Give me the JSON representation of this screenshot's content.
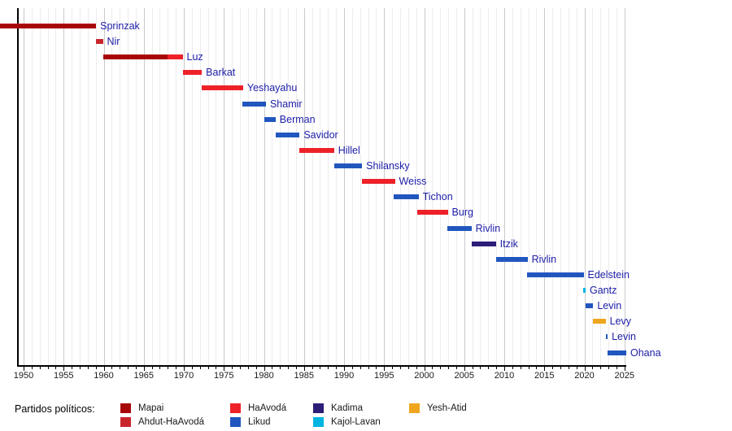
{
  "chart_data": {
    "type": "bar",
    "subtype": "gantt-timeline",
    "title": "",
    "legend_title": "Partidos políticos:",
    "legend_position": "bottom",
    "grid": "vertical-year-lines",
    "x_axis": {
      "min_year": 1950,
      "max_year": 2025,
      "major_tick_interval": 5,
      "minor_tick_interval": 1,
      "tick_labels": [
        "1950",
        "1955",
        "1960",
        "1965",
        "1970",
        "1975",
        "1980",
        "1985",
        "1990",
        "1995",
        "2000",
        "2005",
        "2010",
        "2015",
        "2020",
        "2025"
      ]
    },
    "parties": [
      {
        "id": "mapai",
        "label": "Mapai",
        "color": "#A8070A"
      },
      {
        "id": "ahdut",
        "label": "Ahdut-HaAvodá",
        "color": "#C9252D"
      },
      {
        "id": "haavoda",
        "label": "HaAvodá",
        "color": "#EE2128"
      },
      {
        "id": "likud",
        "label": "Likud",
        "color": "#2156BE"
      },
      {
        "id": "kadima",
        "label": "Kadima",
        "color": "#2B1E78"
      },
      {
        "id": "kajol-lavan",
        "label": "Kajol-Lavan",
        "color": "#00B5E2"
      },
      {
        "id": "yesh-atid",
        "label": "Yesh-Atid",
        "color": "#EFA61F"
      }
    ],
    "speakers": [
      {
        "name": "Sprinzak",
        "segments": [
          {
            "start": 1947.0,
            "end": 1959.05,
            "party": "mapai"
          }
        ]
      },
      {
        "name": "Nir",
        "segments": [
          {
            "start": 1959.0,
            "end": 1959.9,
            "party": "ahdut"
          }
        ]
      },
      {
        "name": "Luz",
        "segments": [
          {
            "start": 1959.9,
            "end": 1968.0,
            "party": "mapai"
          },
          {
            "start": 1968.0,
            "end": 1969.85,
            "party": "haavoda"
          }
        ]
      },
      {
        "name": "Barkat",
        "segments": [
          {
            "start": 1969.85,
            "end": 1972.25,
            "party": "haavoda"
          }
        ]
      },
      {
        "name": "Yeshayahu",
        "segments": [
          {
            "start": 1972.2,
            "end": 1977.4,
            "party": "haavoda"
          }
        ]
      },
      {
        "name": "Shamir",
        "segments": [
          {
            "start": 1977.3,
            "end": 1980.25,
            "party": "likud"
          }
        ]
      },
      {
        "name": "Berman",
        "segments": [
          {
            "start": 1980.0,
            "end": 1981.45,
            "party": "likud"
          }
        ]
      },
      {
        "name": "Savidor",
        "segments": [
          {
            "start": 1981.45,
            "end": 1984.45,
            "party": "likud"
          }
        ]
      },
      {
        "name": "Hillel",
        "segments": [
          {
            "start": 1984.45,
            "end": 1988.75,
            "party": "haavoda"
          }
        ]
      },
      {
        "name": "Shilansky",
        "segments": [
          {
            "start": 1988.75,
            "end": 1992.25,
            "party": "likud"
          }
        ]
      },
      {
        "name": "Weiss",
        "segments": [
          {
            "start": 1992.2,
            "end": 1996.35,
            "party": "haavoda"
          }
        ]
      },
      {
        "name": "Tichon",
        "segments": [
          {
            "start": 1996.2,
            "end": 1999.3,
            "party": "likud"
          }
        ]
      },
      {
        "name": "Burg",
        "segments": [
          {
            "start": 1999.15,
            "end": 2002.95,
            "party": "haavoda"
          }
        ]
      },
      {
        "name": "Rivlin",
        "segments": [
          {
            "start": 2002.9,
            "end": 2005.9,
            "party": "likud"
          }
        ]
      },
      {
        "name": "Itzik",
        "segments": [
          {
            "start": 2005.95,
            "end": 2008.95,
            "party": "kadima"
          }
        ]
      },
      {
        "name": "Rivlin",
        "segments": [
          {
            "start": 2008.95,
            "end": 2012.9,
            "party": "likud"
          }
        ]
      },
      {
        "name": "Edelstein",
        "segments": [
          {
            "start": 2012.85,
            "end": 2019.9,
            "party": "likud"
          }
        ]
      },
      {
        "name": "Gantz",
        "segments": [
          {
            "start": 2019.85,
            "end": 2020.15,
            "party": "kajol-lavan"
          }
        ]
      },
      {
        "name": "Levin",
        "segments": [
          {
            "start": 2020.2,
            "end": 2021.1,
            "party": "likud"
          }
        ]
      },
      {
        "name": "Levy",
        "segments": [
          {
            "start": 2021.1,
            "end": 2022.65,
            "party": "yesh-atid"
          }
        ]
      },
      {
        "name": "Levin",
        "segments": [
          {
            "start": 2022.65,
            "end": 2022.9,
            "party": "likud"
          }
        ]
      },
      {
        "name": "Ohana",
        "segments": [
          {
            "start": 2022.9,
            "end": 2025.4,
            "party": "likud"
          }
        ]
      }
    ]
  }
}
